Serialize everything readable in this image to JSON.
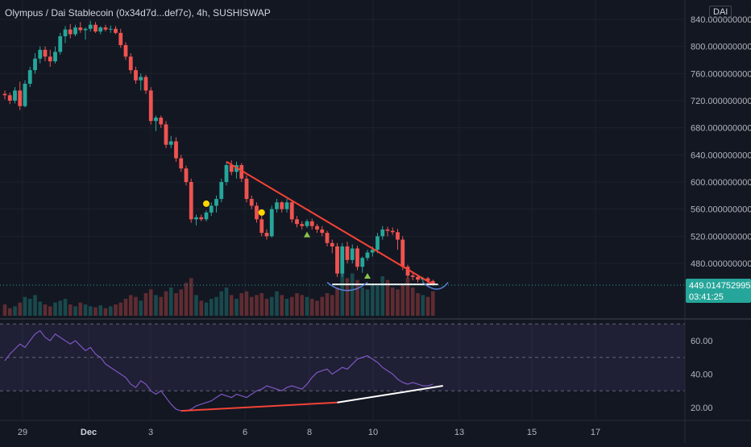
{
  "header": {
    "title": "Olympus / Dai Stablecoin (0x34d7d...def7c), 4h, SUSHISWAP",
    "currency": "DAI"
  },
  "colors": {
    "background": "#131722",
    "up": "#26a69a",
    "down": "#ef5350",
    "grid": "#1e222d",
    "rsi": "#7e57c2",
    "price_tag": "#26a69a"
  },
  "price_axis": {
    "ticks": [
      "840.0000000000",
      "800.0000000000",
      "760.0000000000",
      "720.0000000000",
      "680.0000000000",
      "640.0000000000",
      "600.0000000000",
      "560.0000000000",
      "520.0000000000",
      "480.0000000000"
    ],
    "current_price": "449.0147529958",
    "countdown": "03:41:25"
  },
  "rsi_axis": {
    "ticks": [
      "60.00",
      "40.00",
      "20.00"
    ]
  },
  "time_axis": {
    "labels": [
      "29",
      "Dec",
      "3",
      "6",
      "8",
      "10",
      "13",
      "15",
      "17"
    ]
  },
  "chart_data": {
    "type": "candlestick",
    "title": "Olympus / Dai Stablecoin (0x34d7d...def7c), 4h, SUSHISWAP",
    "interval": "4h",
    "exchange": "SUSHISWAP",
    "y_range": [
      430,
      860
    ],
    "rsi_range": [
      15,
      72
    ],
    "rsi_levels": [
      30,
      70
    ],
    "candles": [
      {
        "o": 730,
        "h": 735,
        "l": 722,
        "c": 728
      },
      {
        "o": 728,
        "h": 732,
        "l": 715,
        "c": 720
      },
      {
        "o": 720,
        "h": 740,
        "l": 716,
        "c": 735
      },
      {
        "o": 735,
        "h": 748,
        "l": 706,
        "c": 712
      },
      {
        "o": 712,
        "h": 750,
        "l": 710,
        "c": 745
      },
      {
        "o": 745,
        "h": 770,
        "l": 740,
        "c": 765
      },
      {
        "o": 765,
        "h": 790,
        "l": 760,
        "c": 782
      },
      {
        "o": 782,
        "h": 800,
        "l": 775,
        "c": 795
      },
      {
        "o": 795,
        "h": 800,
        "l": 778,
        "c": 785
      },
      {
        "o": 785,
        "h": 795,
        "l": 770,
        "c": 778
      },
      {
        "o": 778,
        "h": 800,
        "l": 775,
        "c": 792
      },
      {
        "o": 792,
        "h": 820,
        "l": 788,
        "c": 815
      },
      {
        "o": 815,
        "h": 830,
        "l": 805,
        "c": 825
      },
      {
        "o": 825,
        "h": 833,
        "l": 812,
        "c": 818
      },
      {
        "o": 818,
        "h": 832,
        "l": 815,
        "c": 828
      },
      {
        "o": 828,
        "h": 836,
        "l": 820,
        "c": 824
      },
      {
        "o": 824,
        "h": 828,
        "l": 810,
        "c": 826
      },
      {
        "o": 826,
        "h": 838,
        "l": 822,
        "c": 832
      },
      {
        "o": 832,
        "h": 836,
        "l": 820,
        "c": 822
      },
      {
        "o": 822,
        "h": 830,
        "l": 818,
        "c": 828
      },
      {
        "o": 828,
        "h": 832,
        "l": 822,
        "c": 825
      },
      {
        "o": 825,
        "h": 831,
        "l": 820,
        "c": 826
      },
      {
        "o": 826,
        "h": 830,
        "l": 818,
        "c": 820
      },
      {
        "o": 820,
        "h": 826,
        "l": 798,
        "c": 802
      },
      {
        "o": 802,
        "h": 806,
        "l": 780,
        "c": 785
      },
      {
        "o": 785,
        "h": 790,
        "l": 760,
        "c": 765
      },
      {
        "o": 765,
        "h": 770,
        "l": 745,
        "c": 750
      },
      {
        "o": 750,
        "h": 760,
        "l": 735,
        "c": 755
      },
      {
        "o": 755,
        "h": 758,
        "l": 730,
        "c": 735
      },
      {
        "o": 735,
        "h": 740,
        "l": 685,
        "c": 690
      },
      {
        "o": 690,
        "h": 698,
        "l": 675,
        "c": 695
      },
      {
        "o": 695,
        "h": 698,
        "l": 680,
        "c": 685
      },
      {
        "o": 685,
        "h": 690,
        "l": 650,
        "c": 655
      },
      {
        "o": 655,
        "h": 668,
        "l": 650,
        "c": 660
      },
      {
        "o": 660,
        "h": 666,
        "l": 630,
        "c": 635
      },
      {
        "o": 635,
        "h": 640,
        "l": 615,
        "c": 620
      },
      {
        "o": 620,
        "h": 624,
        "l": 595,
        "c": 600
      },
      {
        "o": 600,
        "h": 605,
        "l": 540,
        "c": 545
      },
      {
        "o": 545,
        "h": 552,
        "l": 536,
        "c": 548
      },
      {
        "o": 548,
        "h": 552,
        "l": 542,
        "c": 545
      },
      {
        "o": 545,
        "h": 558,
        "l": 542,
        "c": 555
      },
      {
        "o": 555,
        "h": 570,
        "l": 550,
        "c": 565
      },
      {
        "o": 565,
        "h": 580,
        "l": 555,
        "c": 575
      },
      {
        "o": 575,
        "h": 605,
        "l": 570,
        "c": 600
      },
      {
        "o": 600,
        "h": 630,
        "l": 595,
        "c": 625
      },
      {
        "o": 625,
        "h": 632,
        "l": 610,
        "c": 615
      },
      {
        "o": 615,
        "h": 630,
        "l": 605,
        "c": 625
      },
      {
        "o": 625,
        "h": 628,
        "l": 600,
        "c": 605
      },
      {
        "o": 605,
        "h": 610,
        "l": 570,
        "c": 575
      },
      {
        "o": 575,
        "h": 580,
        "l": 560,
        "c": 565
      },
      {
        "o": 565,
        "h": 570,
        "l": 540,
        "c": 545
      },
      {
        "o": 545,
        "h": 550,
        "l": 520,
        "c": 525
      },
      {
        "o": 525,
        "h": 530,
        "l": 515,
        "c": 520
      },
      {
        "o": 520,
        "h": 565,
        "l": 518,
        "c": 560
      },
      {
        "o": 560,
        "h": 575,
        "l": 555,
        "c": 570
      },
      {
        "o": 570,
        "h": 572,
        "l": 555,
        "c": 560
      },
      {
        "o": 560,
        "h": 575,
        "l": 555,
        "c": 570
      },
      {
        "o": 570,
        "h": 572,
        "l": 540,
        "c": 545
      },
      {
        "o": 545,
        "h": 550,
        "l": 533,
        "c": 538
      },
      {
        "o": 538,
        "h": 542,
        "l": 530,
        "c": 535
      },
      {
        "o": 535,
        "h": 545,
        "l": 532,
        "c": 542
      },
      {
        "o": 542,
        "h": 546,
        "l": 530,
        "c": 535
      },
      {
        "o": 535,
        "h": 538,
        "l": 525,
        "c": 530
      },
      {
        "o": 530,
        "h": 535,
        "l": 520,
        "c": 525
      },
      {
        "o": 525,
        "h": 528,
        "l": 505,
        "c": 510
      },
      {
        "o": 510,
        "h": 515,
        "l": 495,
        "c": 505
      },
      {
        "o": 505,
        "h": 510,
        "l": 460,
        "c": 465
      },
      {
        "o": 465,
        "h": 510,
        "l": 460,
        "c": 505
      },
      {
        "o": 505,
        "h": 512,
        "l": 480,
        "c": 485
      },
      {
        "o": 485,
        "h": 508,
        "l": 480,
        "c": 502
      },
      {
        "o": 502,
        "h": 506,
        "l": 470,
        "c": 475
      },
      {
        "o": 475,
        "h": 490,
        "l": 466,
        "c": 488
      },
      {
        "o": 488,
        "h": 500,
        "l": 484,
        "c": 496
      },
      {
        "o": 496,
        "h": 505,
        "l": 490,
        "c": 500
      },
      {
        "o": 500,
        "h": 525,
        "l": 495,
        "c": 520
      },
      {
        "o": 520,
        "h": 535,
        "l": 515,
        "c": 530
      },
      {
        "o": 530,
        "h": 534,
        "l": 520,
        "c": 528
      },
      {
        "o": 528,
        "h": 533,
        "l": 522,
        "c": 526
      },
      {
        "o": 526,
        "h": 531,
        "l": 500,
        "c": 515
      },
      {
        "o": 515,
        "h": 520,
        "l": 470,
        "c": 475
      },
      {
        "o": 475,
        "h": 478,
        "l": 458,
        "c": 462
      },
      {
        "o": 462,
        "h": 468,
        "l": 455,
        "c": 460
      },
      {
        "o": 460,
        "h": 463,
        "l": 452,
        "c": 456
      },
      {
        "o": 456,
        "h": 460,
        "l": 452,
        "c": 458
      },
      {
        "o": 458,
        "h": 460,
        "l": 450,
        "c": 454
      },
      {
        "o": 454,
        "h": 456,
        "l": 447,
        "c": 449
      }
    ],
    "volume": [
      12,
      8,
      10,
      14,
      20,
      18,
      22,
      15,
      12,
      10,
      14,
      16,
      18,
      12,
      10,
      14,
      12,
      10,
      9,
      11,
      8,
      10,
      12,
      14,
      18,
      22,
      20,
      16,
      24,
      28,
      22,
      20,
      26,
      30,
      24,
      28,
      35,
      40,
      22,
      16,
      14,
      18,
      20,
      26,
      30,
      22,
      18,
      24,
      26,
      20,
      22,
      24,
      18,
      20,
      26,
      22,
      18,
      20,
      24,
      22,
      20,
      18,
      16,
      20,
      24,
      22,
      30,
      50,
      40,
      45,
      38,
      30,
      28,
      34,
      32,
      42,
      38,
      30,
      28,
      34,
      40,
      30,
      24,
      22,
      20,
      26
    ],
    "rsi": [
      48,
      52,
      55,
      58,
      56,
      60,
      64,
      66,
      62,
      60,
      64,
      62,
      60,
      58,
      60,
      57,
      54,
      56,
      52,
      50,
      46,
      44,
      42,
      40,
      38,
      34,
      32,
      36,
      34,
      30,
      28,
      30,
      26,
      22,
      19,
      18,
      18,
      19,
      21,
      22,
      23,
      24,
      26,
      28,
      27,
      26,
      28,
      27,
      26,
      28,
      30,
      31,
      33,
      32,
      31,
      30,
      32,
      33,
      32,
      31,
      34,
      38,
      41,
      42,
      43,
      40,
      42,
      44,
      43,
      46,
      49,
      50,
      51,
      49,
      47,
      44,
      42,
      40,
      37,
      35,
      34,
      35,
      34,
      33,
      33,
      34
    ],
    "trend_lines": [
      {
        "name": "descending resistance",
        "from": [
          44,
          630
        ],
        "to": [
          85,
          449
        ],
        "color": "#f44336"
      },
      {
        "name": "support",
        "from": [
          65,
          449
        ],
        "to": [
          86,
          449
        ],
        "color": "#ffffff"
      },
      {
        "name": "rsi divergence low",
        "from": [
          35,
          18
        ],
        "to": [
          66,
          23
        ],
        "color": "#f44336",
        "pane": "rsi"
      },
      {
        "name": "rsi divergence high",
        "from": [
          66,
          23
        ],
        "to": [
          87,
          33
        ],
        "color": "#ffffff",
        "pane": "rsi"
      }
    ],
    "markers": [
      {
        "type": "circle",
        "index": 40,
        "value": 568,
        "color": "#ffd600"
      },
      {
        "type": "circle",
        "index": 51,
        "value": 555,
        "color": "#ffd600"
      },
      {
        "type": "triangle-up",
        "index": 60,
        "value": 522,
        "color": "#8bc34a"
      },
      {
        "type": "triangle-up",
        "index": 72,
        "value": 461,
        "color": "#8bc34a"
      }
    ]
  }
}
